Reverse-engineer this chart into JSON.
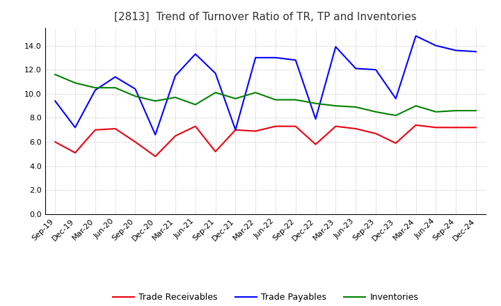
{
  "title": "[2813]  Trend of Turnover Ratio of TR, TP and Inventories",
  "x_labels": [
    "Sep-19",
    "Dec-19",
    "Mar-20",
    "Jun-20",
    "Sep-20",
    "Dec-20",
    "Mar-21",
    "Jun-21",
    "Sep-21",
    "Dec-21",
    "Mar-22",
    "Jun-22",
    "Sep-22",
    "Dec-22",
    "Mar-23",
    "Jun-23",
    "Sep-23",
    "Dec-23",
    "Mar-24",
    "Jun-24",
    "Sep-24",
    "Dec-24"
  ],
  "trade_receivables": [
    6.0,
    5.1,
    7.0,
    7.1,
    6.0,
    4.8,
    6.5,
    7.3,
    5.2,
    7.0,
    6.9,
    7.3,
    7.3,
    5.8,
    7.3,
    7.1,
    6.7,
    5.9,
    7.4,
    7.2,
    7.2,
    7.2
  ],
  "trade_payables": [
    9.4,
    7.2,
    10.3,
    11.4,
    10.4,
    6.6,
    11.5,
    13.3,
    11.7,
    7.0,
    13.0,
    13.0,
    12.8,
    7.9,
    13.9,
    12.1,
    12.0,
    9.6,
    14.8,
    14.0,
    13.6,
    13.5
  ],
  "inventories": [
    11.6,
    10.9,
    10.5,
    10.5,
    9.8,
    9.4,
    9.7,
    9.1,
    10.1,
    9.6,
    10.1,
    9.5,
    9.5,
    9.2,
    9.0,
    8.9,
    8.5,
    8.2,
    9.0,
    8.5,
    8.6,
    8.6
  ],
  "tr_color": "#e8000d",
  "tp_color": "#0000ff",
  "inv_color": "#008000",
  "ylim": [
    0,
    15.5
  ],
  "yticks": [
    0.0,
    2.0,
    4.0,
    6.0,
    8.0,
    10.0,
    12.0,
    14.0
  ],
  "legend_labels": [
    "Trade Receivables",
    "Trade Payables",
    "Inventories"
  ],
  "background_color": "#ffffff",
  "grid_color": "#aaaaaa",
  "title_fontsize": 11,
  "axis_fontsize": 8,
  "legend_fontsize": 9
}
